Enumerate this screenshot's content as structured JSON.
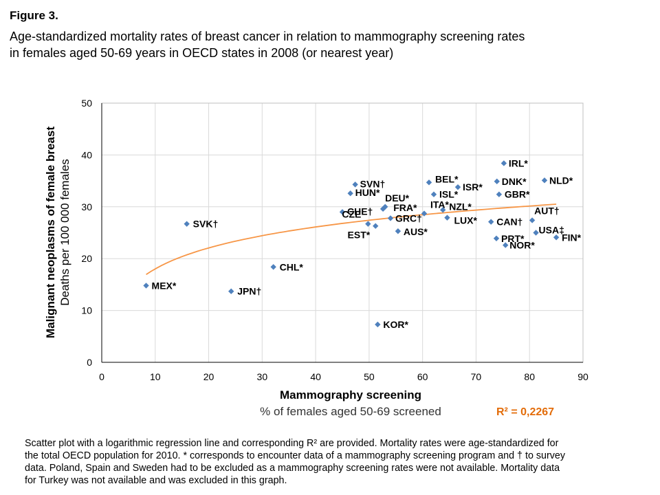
{
  "figure_label": "Figure 3.",
  "figure_title": [
    "Age-standardized mortality rates of breast cancer in relation to mammography screening rates",
    "in females aged 50-69 years in OECD states in 2008 (or nearest year)"
  ],
  "caption": [
    "Scatter plot with a logarithmic regression line and corresponding R² are provided. Mortality rates were age-standardized for",
    "the total OECD population for 2010. * corresponds to encounter data of a mammography screening program and † to survey",
    "data. Poland, Spain and Sweden had to be excluded as a mammography screening rates were not available. Mortality data",
    "for Turkey was not available and was excluded in this graph."
  ],
  "r_squared_label": "R² = 0,2267",
  "colors": {
    "marker": "#4f81bd",
    "trendline": "#f79646",
    "r2_text": "#e36c09",
    "grid": "#d9d9d9"
  },
  "chart_data": {
    "type": "scatter",
    "xlabel": "Mammography screening",
    "xlabel_sub": "% of females  aged 50-69 screened",
    "ylabel": "Malignant neoplasms of female breast",
    "ylabel_sub": "Deaths per 100 000 females",
    "xlim": [
      0,
      90
    ],
    "ylim": [
      0,
      50
    ],
    "xticks": [
      0,
      10,
      20,
      30,
      40,
      50,
      60,
      70,
      80,
      90
    ],
    "yticks": [
      0,
      10,
      20,
      30,
      40,
      50
    ],
    "grid": true,
    "trendline": {
      "type": "logarithmic",
      "x_range": [
        8.3,
        85
      ],
      "intercept": 4.6,
      "slope": 5.83
    },
    "points": [
      {
        "label": "MEX*",
        "x": 8.3,
        "y": 14.8
      },
      {
        "label": "SVK†",
        "x": 15.9,
        "y": 26.7
      },
      {
        "label": "JPN†",
        "x": 24.2,
        "y": 13.7
      },
      {
        "label": "CHL*",
        "x": 32.1,
        "y": 18.4
      },
      {
        "label": "CHE†",
        "x": 45.0,
        "y": 29.0
      },
      {
        "label": "HUN*",
        "x": 46.5,
        "y": 32.6
      },
      {
        "label": "SVN†",
        "x": 47.4,
        "y": 34.3
      },
      {
        "label": "CZE",
        "x": 49.8,
        "y": 26.7
      },
      {
        "label": "EST*",
        "x": 51.2,
        "y": 26.3
      },
      {
        "label": "KOR*",
        "x": 51.6,
        "y": 7.3
      },
      {
        "label": "DEU*",
        "x": 52.6,
        "y": 29.6
      },
      {
        "label": "FRA*",
        "x": 53.0,
        "y": 30.0
      },
      {
        "label": "GRC†",
        "x": 54.0,
        "y": 27.8
      },
      {
        "label": "AUS*",
        "x": 55.4,
        "y": 25.3
      },
      {
        "label": "ITA*",
        "x": 60.3,
        "y": 28.7
      },
      {
        "label": "BEL*",
        "x": 61.2,
        "y": 34.7
      },
      {
        "label": "ISL*",
        "x": 62.1,
        "y": 32.4
      },
      {
        "label": "NZL*",
        "x": 63.8,
        "y": 29.4
      },
      {
        "label": "LUX*",
        "x": 64.6,
        "y": 27.9
      },
      {
        "label": "ISR*",
        "x": 66.6,
        "y": 33.8
      },
      {
        "label": "CAN†",
        "x": 72.8,
        "y": 27.1
      },
      {
        "label": "PRT*",
        "x": 73.8,
        "y": 23.9
      },
      {
        "label": "DNK*",
        "x": 73.9,
        "y": 34.9
      },
      {
        "label": "GBR*",
        "x": 74.3,
        "y": 32.4
      },
      {
        "label": "IRL*",
        "x": 75.2,
        "y": 38.4
      },
      {
        "label": "NOR*",
        "x": 75.5,
        "y": 22.6
      },
      {
        "label": "AUT†",
        "x": 80.5,
        "y": 27.4
      },
      {
        "label": "USA‡",
        "x": 81.2,
        "y": 25.0
      },
      {
        "label": "NLD*",
        "x": 82.8,
        "y": 35.1
      },
      {
        "label": "FIN*",
        "x": 85.0,
        "y": 24.1
      }
    ]
  }
}
